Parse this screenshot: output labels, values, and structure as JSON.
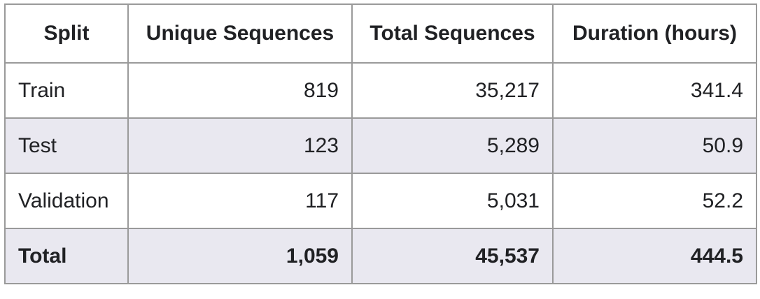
{
  "table": {
    "headers": [
      "Split",
      "Unique Sequences",
      "Total Sequences",
      "Duration (hours)"
    ],
    "rows": [
      [
        "Train",
        "819",
        "35,217",
        "341.4"
      ],
      [
        "Test",
        "123",
        "5,289",
        "50.9"
      ],
      [
        "Validation",
        "117",
        "5,031",
        "52.2"
      ]
    ],
    "total": [
      "Total",
      "1,059",
      "45,537",
      "444.5"
    ]
  },
  "colors": {
    "border": "#9a9a9a",
    "shaded_row": "#e9e8f0",
    "text": "#202124"
  }
}
